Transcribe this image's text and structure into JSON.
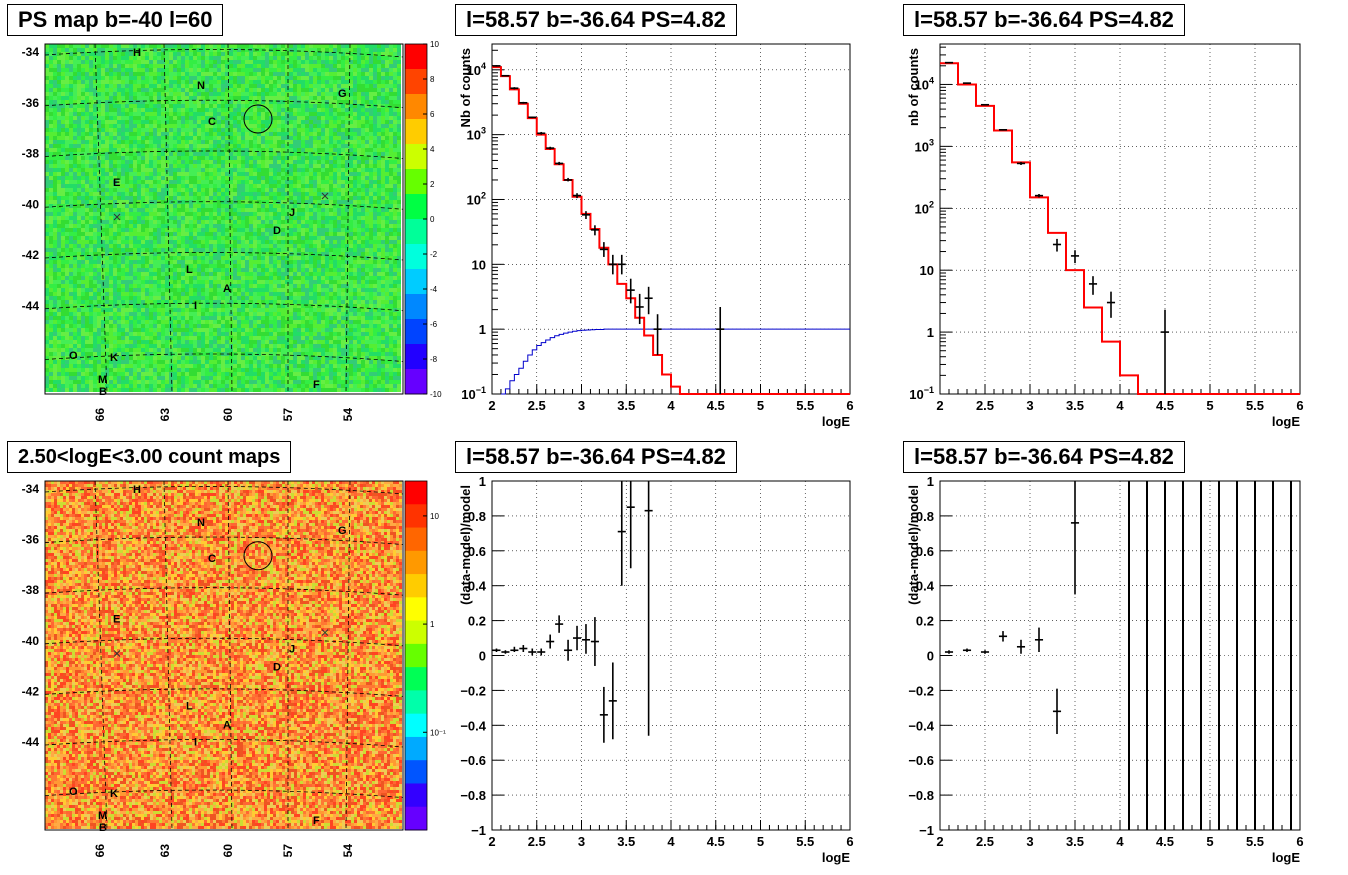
{
  "panels": {
    "map_top": {
      "title": "PS map b=-40 l=60",
      "y_ticks": [
        "-34",
        "-36",
        "-38",
        "-40",
        "-42",
        "-44"
      ],
      "x_ticks": [
        "66",
        "63",
        "60",
        "57",
        "54"
      ],
      "colorbar_ticks": [
        "10",
        "8",
        "6",
        "4",
        "2",
        "0",
        "-2",
        "-4",
        "-6",
        "-8",
        "-10"
      ],
      "source_labels": [
        "H",
        "N",
        "G",
        "C",
        "E",
        "J",
        "D",
        "L",
        "A",
        "I",
        "O",
        "K",
        "M",
        "B",
        "F"
      ]
    },
    "map_bottom": {
      "title": "2.50<logE<3.00 count maps",
      "y_ticks": [
        "-34",
        "-36",
        "-38",
        "-40",
        "-42",
        "-44"
      ],
      "x_ticks": [
        "66",
        "63",
        "60",
        "57",
        "54"
      ],
      "colorbar_ticks": [
        "10",
        "1",
        "10⁻¹"
      ],
      "source_labels": [
        "H",
        "N",
        "G",
        "C",
        "E",
        "J",
        "D",
        "L",
        "A",
        "I",
        "O",
        "K",
        "M",
        "B",
        "F"
      ]
    },
    "spec_left_title": "l=58.57 b=-36.64 PS=4.82",
    "spec_right_title": "l=58.57 b=-36.64 PS=4.82",
    "resid_left_title": "l=58.57 b=-36.64 PS=4.82",
    "resid_right_title": "l=58.57 b=-36.64 PS=4.82"
  },
  "chart_data": [
    {
      "type": "line",
      "name": "spectrum-fine",
      "title": "l=58.57 b=-36.64 PS=4.82",
      "xlabel": "logE",
      "ylabel": "Nb of counts",
      "xlim": [
        2,
        6
      ],
      "ylim": [
        0.1,
        25000
      ],
      "log_y": true,
      "grid": true,
      "x_ticks": [
        "2",
        "2.5",
        "3",
        "3.5",
        "4",
        "4.5",
        "5",
        "5.5",
        "6"
      ],
      "y_ticks": [
        {
          "v": 0.1,
          "label": "10⁻¹",
          "base": "10",
          "exp": "−1"
        },
        {
          "v": 1,
          "label": "1"
        },
        {
          "v": 10,
          "label": "10"
        },
        {
          "v": 100,
          "label": "10²",
          "base": "10",
          "exp": "2"
        },
        {
          "v": 1000,
          "label": "10³",
          "base": "10",
          "exp": "3"
        },
        {
          "v": 10000,
          "label": "10⁴",
          "base": "10",
          "exp": "4"
        }
      ],
      "model_steps": {
        "name": "model",
        "color": "#ff0000",
        "edges": [
          2.0,
          2.1,
          2.2,
          2.3,
          2.4,
          2.5,
          2.6,
          2.7,
          2.8,
          2.9,
          3.0,
          3.1,
          3.2,
          3.3,
          3.4,
          3.5,
          3.6,
          3.7,
          3.8,
          3.9,
          4.0,
          4.1,
          4.2,
          6.0
        ],
        "values": [
          11000,
          8000,
          5000,
          3000,
          1800,
          1000,
          600,
          350,
          200,
          110,
          60,
          35,
          18,
          10,
          5,
          3,
          1.5,
          0.8,
          0.4,
          0.2,
          0.13,
          0.1,
          0.1
        ]
      },
      "threshold_curve": {
        "name": "threshold",
        "color": "#0000cc",
        "edges": [
          2.1,
          2.15,
          2.2,
          2.25,
          2.3,
          2.35,
          2.4,
          2.45,
          2.5,
          2.55,
          2.6,
          2.65,
          2.7,
          2.75,
          2.8,
          2.85,
          2.9,
          2.95,
          3.0,
          3.05,
          3.1,
          3.15,
          3.2,
          3.25,
          3.3,
          3.35,
          3.4,
          3.5,
          6.0
        ],
        "values": [
          0.1,
          0.12,
          0.16,
          0.2,
          0.25,
          0.32,
          0.4,
          0.48,
          0.56,
          0.62,
          0.68,
          0.74,
          0.79,
          0.83,
          0.87,
          0.9,
          0.93,
          0.95,
          0.96,
          0.97,
          0.98,
          0.99,
          0.99,
          1.0,
          1.0,
          1.0,
          1.0,
          1.0
        ]
      },
      "data_points": {
        "name": "data",
        "x": [
          2.05,
          2.15,
          2.25,
          2.35,
          2.45,
          2.55,
          2.65,
          2.75,
          2.85,
          2.95,
          3.05,
          3.15,
          3.25,
          3.35,
          3.45,
          3.55,
          3.65,
          3.75,
          3.85,
          4.55
        ],
        "y": [
          11500,
          8100,
          5200,
          3100,
          1850,
          1050,
          620,
          360,
          200,
          115,
          58,
          34,
          17,
          10,
          10,
          4,
          2.2,
          3,
          1,
          1
        ],
        "ylow": [
          11200,
          7900,
          5000,
          3000,
          1800,
          1000,
          590,
          340,
          190,
          105,
          50,
          28,
          13,
          7,
          7,
          2.5,
          1.2,
          1.7,
          0.4,
          0.1
        ],
        "yhigh": [
          11800,
          8300,
          5400,
          3200,
          1900,
          1100,
          650,
          380,
          215,
          125,
          66,
          40,
          22,
          14,
          14,
          6,
          3.5,
          4.5,
          1.7,
          2.2
        ]
      }
    },
    {
      "type": "line",
      "name": "spectrum-coarse",
      "title": "l=58.57 b=-36.64 PS=4.82",
      "xlabel": "logE",
      "ylabel": "nb of counts",
      "xlim": [
        2,
        6
      ],
      "ylim": [
        0.1,
        45000
      ],
      "log_y": true,
      "grid": true,
      "x_ticks": [
        "2",
        "2.5",
        "3",
        "3.5",
        "4",
        "4.5",
        "5",
        "5.5",
        "6"
      ],
      "y_ticks": [
        {
          "v": 0.1,
          "label": "10⁻¹",
          "base": "10",
          "exp": "−1"
        },
        {
          "v": 1,
          "label": "1"
        },
        {
          "v": 10,
          "label": "10"
        },
        {
          "v": 100,
          "label": "10²",
          "base": "10",
          "exp": "2"
        },
        {
          "v": 1000,
          "label": "10³",
          "base": "10",
          "exp": "3"
        },
        {
          "v": 10000,
          "label": "10⁴",
          "base": "10",
          "exp": "4"
        }
      ],
      "model_steps": {
        "name": "model",
        "color": "#ff0000",
        "edges": [
          2.0,
          2.2,
          2.4,
          2.6,
          2.8,
          3.0,
          3.2,
          3.4,
          3.6,
          3.8,
          4.0,
          4.2,
          6.0
        ],
        "values": [
          22000,
          10000,
          4500,
          1800,
          550,
          150,
          40,
          10,
          2.5,
          0.7,
          0.2,
          0.1
        ]
      },
      "data_points": {
        "name": "data",
        "x": [
          2.1,
          2.3,
          2.5,
          2.7,
          2.9,
          3.1,
          3.3,
          3.5,
          3.7,
          3.9,
          4.5
        ],
        "y": [
          22500,
          10500,
          4700,
          1850,
          530,
          160,
          26,
          17,
          6,
          3,
          1
        ],
        "ylow": [
          22200,
          10300,
          4600,
          1800,
          500,
          150,
          20,
          13,
          4,
          1.7,
          0.1
        ],
        "yhigh": [
          22800,
          10700,
          4800,
          1900,
          560,
          170,
          32,
          21,
          8,
          4.5,
          2.3
        ]
      }
    },
    {
      "type": "scatter",
      "name": "residual-fine",
      "title": "l=58.57 b=-36.64 PS=4.82",
      "xlabel": "logE",
      "ylabel": "(data-model)/model",
      "xlim": [
        2,
        6
      ],
      "ylim": [
        -1,
        1
      ],
      "grid": true,
      "x_ticks": [
        "2",
        "2.5",
        "3",
        "3.5",
        "4",
        "4.5",
        "5",
        "5.5",
        "6"
      ],
      "y_ticks": [
        "-1",
        "-0.8",
        "-0.6",
        "-0.4",
        "-0.2",
        "0",
        "0.2",
        "0.4",
        "0.6",
        "0.8",
        "1"
      ],
      "x": [
        2.05,
        2.15,
        2.25,
        2.35,
        2.45,
        2.55,
        2.65,
        2.75,
        2.85,
        2.95,
        3.05,
        3.15,
        3.25,
        3.35,
        3.45,
        3.55,
        3.75
      ],
      "y": [
        0.03,
        0.02,
        0.03,
        0.04,
        0.02,
        0.02,
        0.08,
        0.18,
        0.03,
        0.1,
        0.09,
        0.08,
        -0.34,
        -0.26,
        0.71,
        0.85,
        0.83
      ],
      "ylow": [
        0.02,
        0.01,
        0.02,
        0.02,
        0.0,
        0.0,
        0.04,
        0.13,
        -0.03,
        0.03,
        0.01,
        -0.06,
        -0.5,
        -0.48,
        0.4,
        0.5,
        -0.46
      ],
      "yhigh": [
        0.04,
        0.03,
        0.05,
        0.06,
        0.04,
        0.04,
        0.12,
        0.23,
        0.09,
        0.17,
        0.18,
        0.22,
        -0.18,
        -0.04,
        1.0,
        1.0,
        1.0
      ]
    },
    {
      "type": "scatter",
      "name": "residual-coarse",
      "title": "l=58.57 b=-36.64 PS=4.82",
      "xlabel": "logE",
      "ylabel": "(data-model)/model",
      "xlim": [
        2,
        6
      ],
      "ylim": [
        -1,
        1
      ],
      "grid": true,
      "x_ticks": [
        "2",
        "2.5",
        "3",
        "3.5",
        "4",
        "4.5",
        "5",
        "5.5",
        "6"
      ],
      "y_ticks": [
        "-1",
        "-0.8",
        "-0.6",
        "-0.4",
        "-0.2",
        "0",
        "0.2",
        "0.4",
        "0.6",
        "0.8",
        "1"
      ],
      "x": [
        2.1,
        2.3,
        2.5,
        2.7,
        2.9,
        3.1,
        3.3,
        3.5
      ],
      "y": [
        0.02,
        0.03,
        0.02,
        0.11,
        0.05,
        0.09,
        -0.32,
        0.76
      ],
      "ylow": [
        0.01,
        0.02,
        0.01,
        0.08,
        0.01,
        0.02,
        -0.45,
        0.35
      ],
      "yhigh": [
        0.03,
        0.04,
        0.03,
        0.14,
        0.09,
        0.16,
        -0.19,
        1.0
      ],
      "vertical_bars_x": [
        4.1,
        4.3,
        4.5,
        4.7,
        4.9,
        5.1,
        5.3,
        5.5,
        5.7,
        5.9
      ]
    }
  ]
}
